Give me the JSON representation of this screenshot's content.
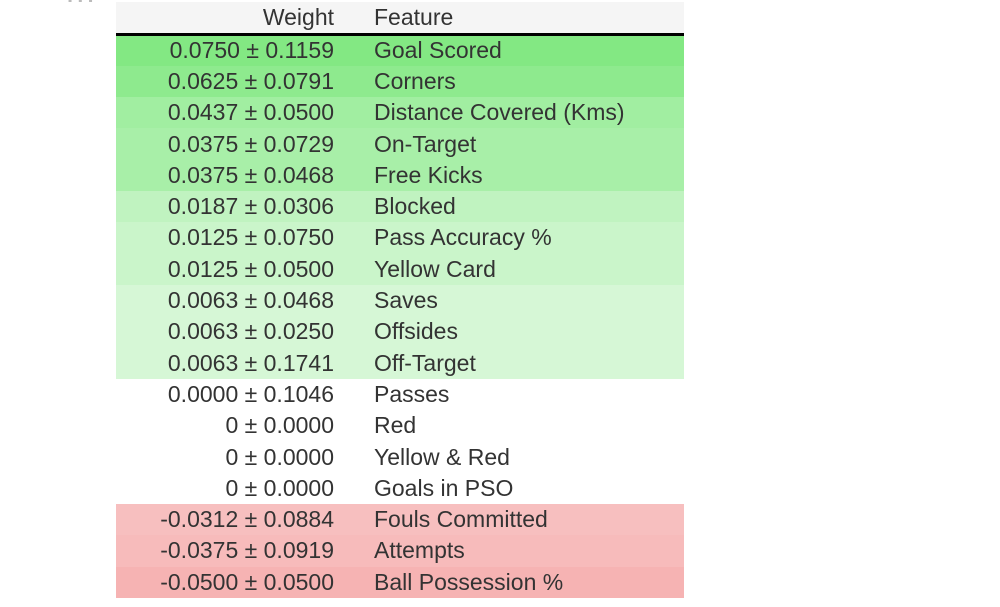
{
  "chart_data": {
    "type": "table",
    "columns": [
      "Weight",
      "Feature"
    ],
    "colors": {
      "positive": "#78e678",
      "negative": "#f08080",
      "neutral": "#ffffff",
      "header_bg": "#f5f5f5"
    },
    "rows": [
      {
        "weight": 0.075,
        "std": 0.1159,
        "weight_text": "0.0750 ± 0.1159",
        "feature": "Goal Scored"
      },
      {
        "weight": 0.0625,
        "std": 0.0791,
        "weight_text": "0.0625 ± 0.0791",
        "feature": "Corners"
      },
      {
        "weight": 0.0437,
        "std": 0.05,
        "weight_text": "0.0437 ± 0.0500",
        "feature": "Distance Covered (Kms)"
      },
      {
        "weight": 0.0375,
        "std": 0.0729,
        "weight_text": "0.0375 ± 0.0729",
        "feature": "On-Target"
      },
      {
        "weight": 0.0375,
        "std": 0.0468,
        "weight_text": "0.0375 ± 0.0468",
        "feature": "Free Kicks"
      },
      {
        "weight": 0.0187,
        "std": 0.0306,
        "weight_text": "0.0187 ± 0.0306",
        "feature": "Blocked"
      },
      {
        "weight": 0.0125,
        "std": 0.075,
        "weight_text": "0.0125 ± 0.0750",
        "feature": "Pass Accuracy %"
      },
      {
        "weight": 0.0125,
        "std": 0.05,
        "weight_text": "0.0125 ± 0.0500",
        "feature": "Yellow Card"
      },
      {
        "weight": 0.0063,
        "std": 0.0468,
        "weight_text": "0.0063 ± 0.0468",
        "feature": "Saves"
      },
      {
        "weight": 0.0063,
        "std": 0.025,
        "weight_text": "0.0063 ± 0.0250",
        "feature": "Offsides"
      },
      {
        "weight": 0.0063,
        "std": 0.1741,
        "weight_text": "0.0063 ± 0.1741",
        "feature": "Off-Target"
      },
      {
        "weight": 0.0,
        "std": 0.1046,
        "weight_text": "0.0000 ± 0.1046",
        "feature": "Passes"
      },
      {
        "weight": 0,
        "std": 0.0,
        "weight_text": "0 ± 0.0000",
        "feature": "Red"
      },
      {
        "weight": 0,
        "std": 0.0,
        "weight_text": "0 ± 0.0000",
        "feature": "Yellow & Red"
      },
      {
        "weight": 0,
        "std": 0.0,
        "weight_text": "0 ± 0.0000",
        "feature": "Goals in PSO"
      },
      {
        "weight": -0.0312,
        "std": 0.0884,
        "weight_text": "-0.0312 ± 0.0884",
        "feature": "Fouls Committed"
      },
      {
        "weight": -0.0375,
        "std": 0.0919,
        "weight_text": "-0.0375 ± 0.0919",
        "feature": "Attempts"
      },
      {
        "weight": -0.05,
        "std": 0.05,
        "weight_text": "-0.0500 ± 0.0500",
        "feature": "Ball Possession %"
      }
    ]
  }
}
